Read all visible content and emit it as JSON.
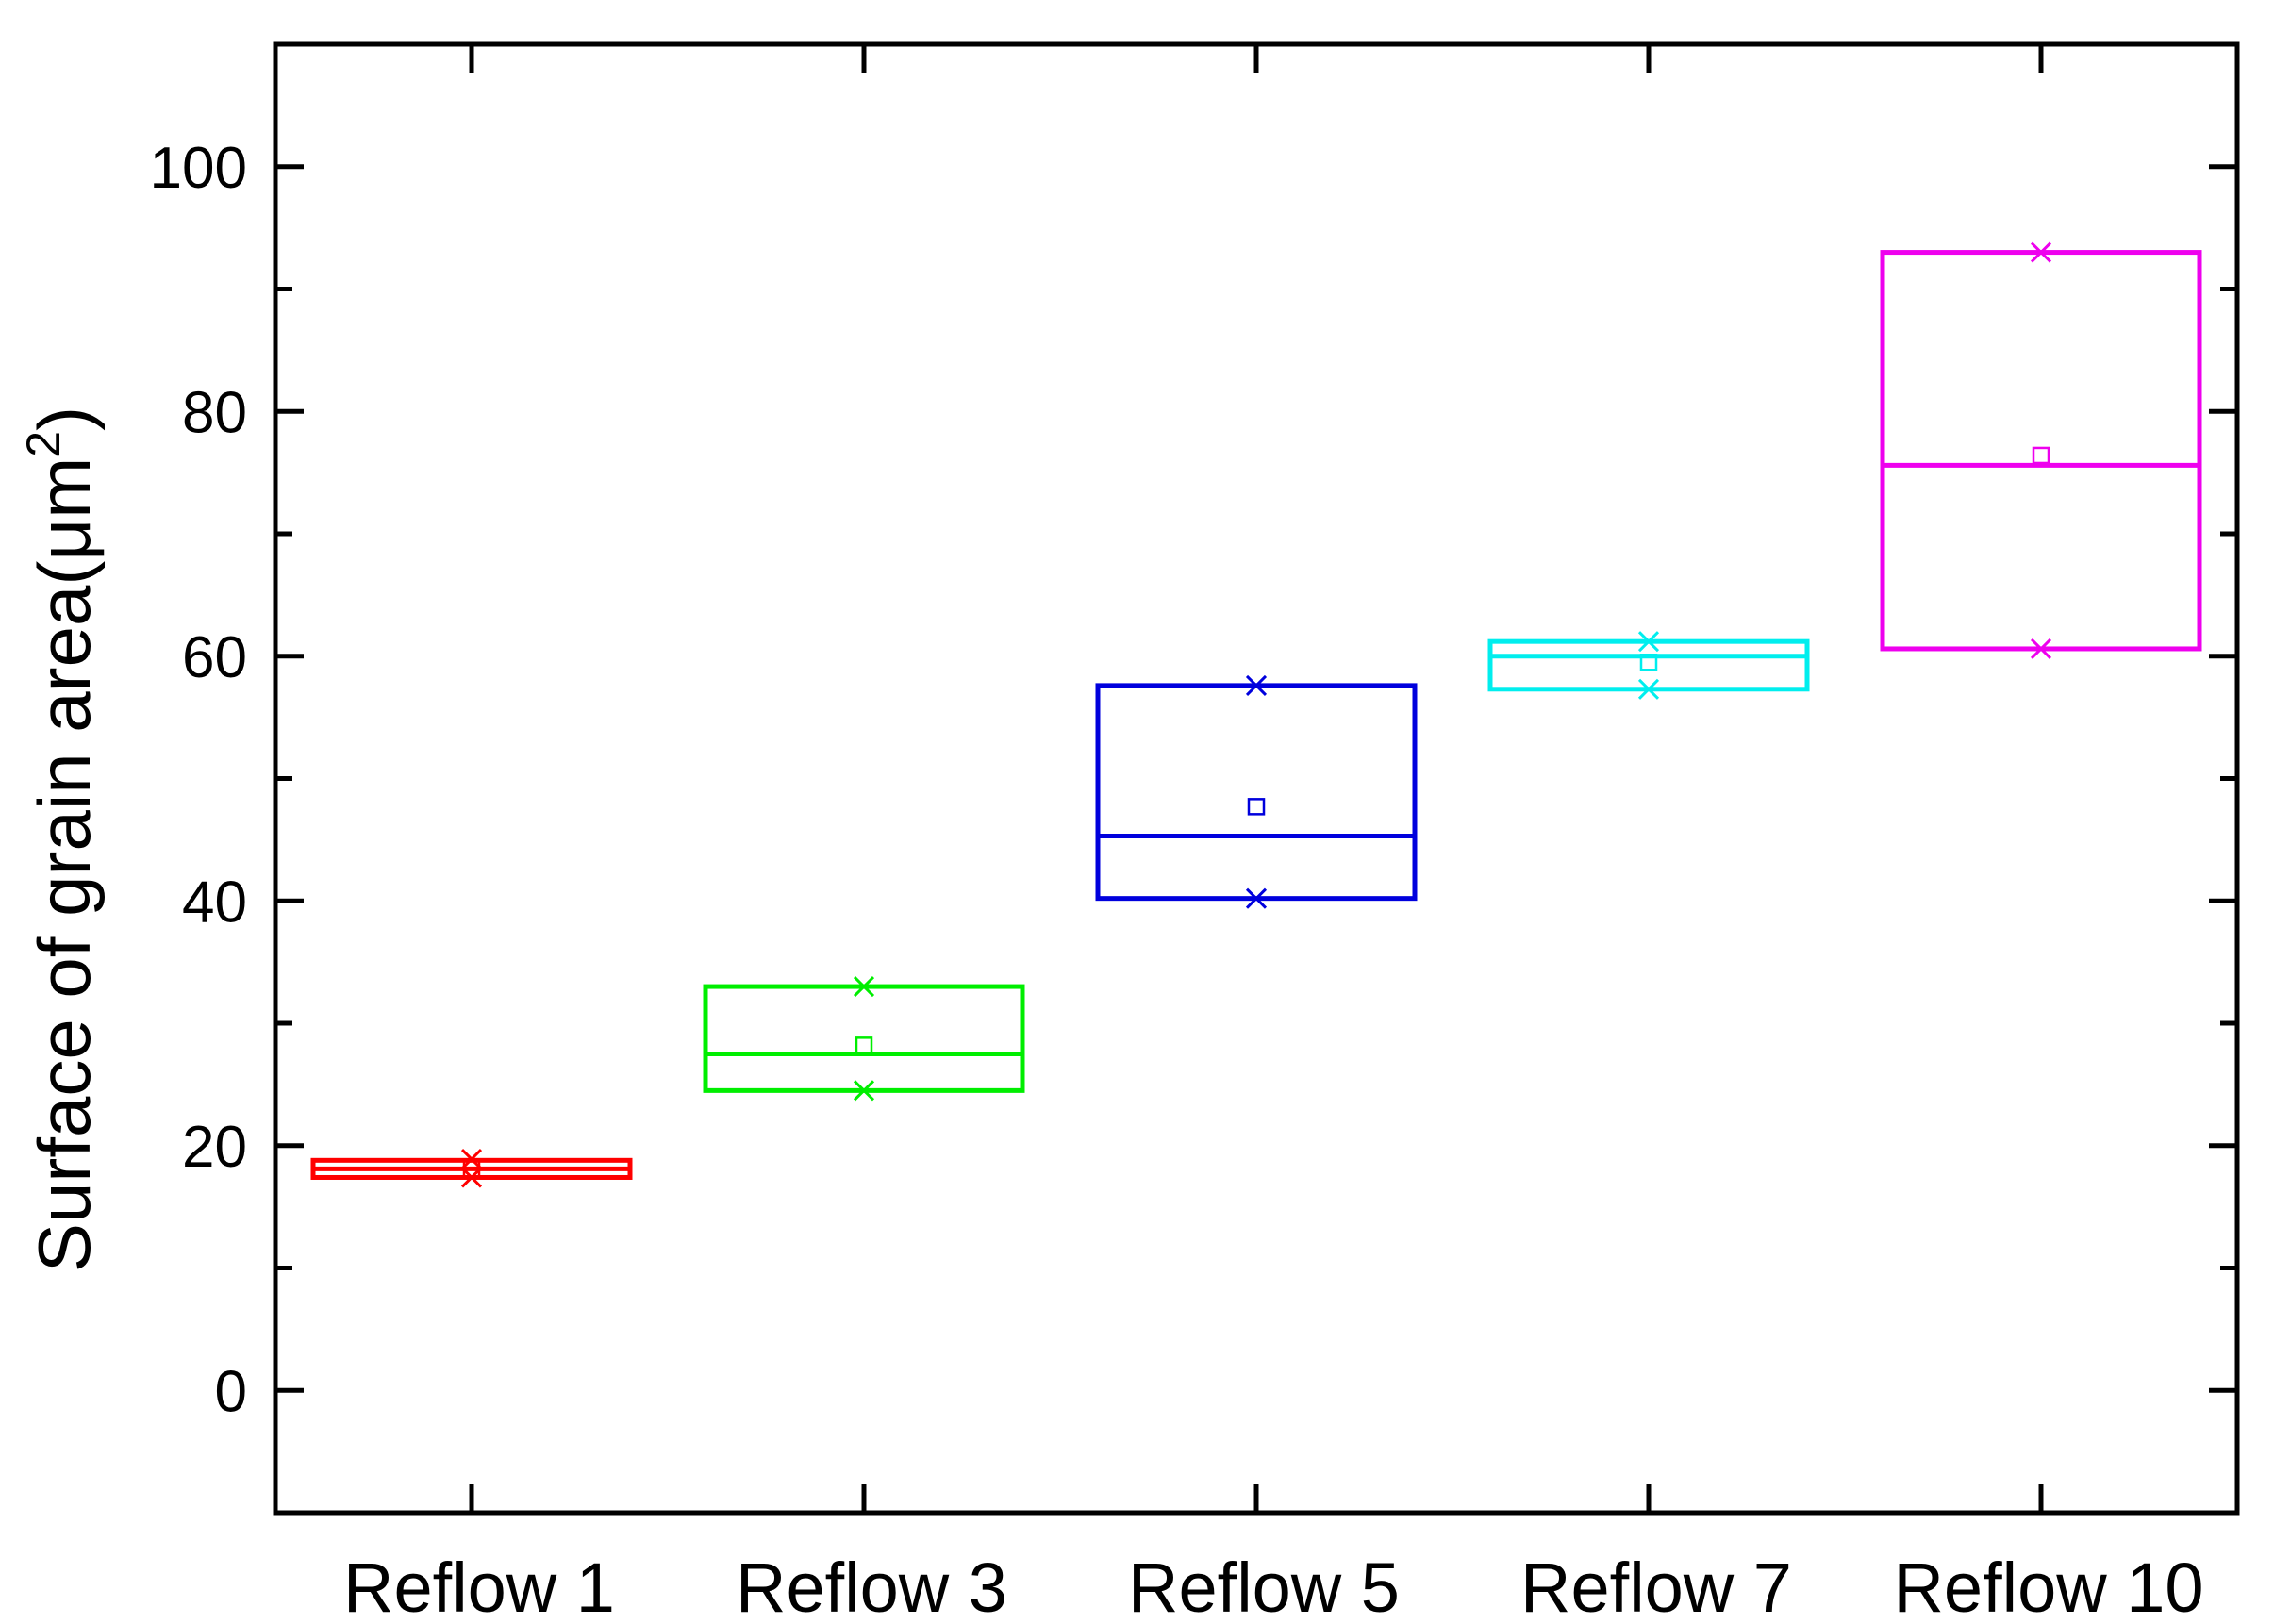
{
  "chart_data": {
    "type": "box",
    "ylabel_parts": [
      "Surface of grain area(",
      "μm",
      "2",
      ")"
    ],
    "ylim": [
      -10,
      110
    ],
    "yticks": [
      0,
      20,
      40,
      60,
      80,
      100
    ],
    "ytick_labels": [
      "0",
      "20",
      "40",
      "60",
      "80",
      "100"
    ],
    "categories": [
      "Reflow 1",
      "Reflow 3",
      "Reflow 5",
      "Reflow 7",
      "Reflow 10"
    ],
    "series": [
      {
        "category": "Reflow 1",
        "color": "#ff0000",
        "q1": 17.4,
        "median": 18.1,
        "q3": 18.8,
        "mean": 18.1,
        "min": 17.4,
        "max": 18.9
      },
      {
        "category": "Reflow 3",
        "color": "#00ee00",
        "q1": 24.5,
        "median": 27.5,
        "q3": 33.0,
        "mean": 28.2,
        "min": 24.5,
        "max": 33.0
      },
      {
        "category": "Reflow 5",
        "color": "#0000dd",
        "q1": 40.2,
        "median": 45.3,
        "q3": 57.6,
        "mean": 47.7,
        "min": 40.2,
        "max": 57.6
      },
      {
        "category": "Reflow 7",
        "color": "#00eeee",
        "q1": 57.3,
        "median": 60.0,
        "q3": 61.2,
        "mean": 59.5,
        "min": 57.3,
        "max": 61.2
      },
      {
        "category": "Reflow 10",
        "color": "#ee00ee",
        "q1": 60.6,
        "median": 75.6,
        "q3": 93.0,
        "mean": 76.4,
        "min": 60.6,
        "max": 93.0
      }
    ],
    "grid": false,
    "legend": "none"
  }
}
